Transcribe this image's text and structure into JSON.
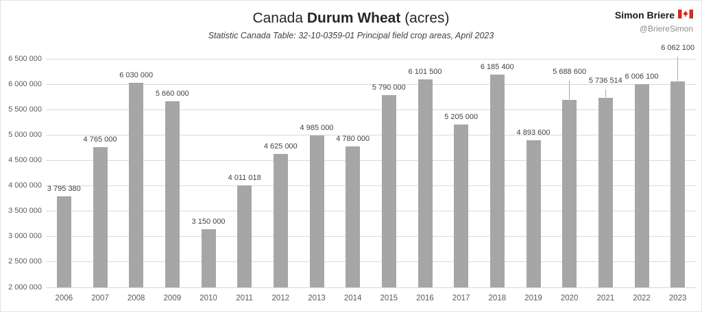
{
  "header": {
    "title_prefix": "Canada ",
    "title_bold": "Durum Wheat",
    "title_suffix": " (acres)",
    "subtitle": "Statistic Canada Table: 32-10-0359-01 Principal field crop areas, April 2023"
  },
  "author": {
    "name": "Simon Briere",
    "handle": "@BriereSimon",
    "flag_icon": "canada-flag"
  },
  "colors": {
    "bar": "#a6a6a6",
    "grid": "#d9d9d9",
    "axis_text": "#595959",
    "label_text": "#404040",
    "flag_red": "#d52b1e"
  },
  "chart_data": {
    "type": "bar",
    "title": "Canada Durum Wheat (acres)",
    "subtitle": "Statistic Canada Table: 32-10-0359-01 Principal field crop areas, April 2023",
    "categories": [
      "2006",
      "2007",
      "2008",
      "2009",
      "2010",
      "2011",
      "2012",
      "2013",
      "2014",
      "2015",
      "2016",
      "2017",
      "2018",
      "2019",
      "2020",
      "2021",
      "2022",
      "2023"
    ],
    "values": [
      3795380,
      4765000,
      6030000,
      5660000,
      3150000,
      4011018,
      4625000,
      4985000,
      4780000,
      5790000,
      6101500,
      5205000,
      6185400,
      4893600,
      5688600,
      5736514,
      6006100,
      6062100
    ],
    "value_labels": [
      "3 795 380",
      "4 765 000",
      "6 030 000",
      "5 660 000",
      "3 150 000",
      "4 011 018",
      "4 625 000",
      "4 985 000",
      "4 780 000",
      "5 790 000",
      "6 101 500",
      "5 205 000",
      "6 185 400",
      "4 893 600",
      "5 688 600",
      "5 736 514",
      "6 006 100",
      "6 062 100"
    ],
    "label_lifts": [
      0,
      0,
      0,
      0,
      0,
      0,
      0,
      0,
      0,
      0,
      0,
      0,
      0,
      0,
      30,
      14,
      0,
      38
    ],
    "xlabel": "",
    "ylabel": "",
    "ylim": [
      2000000,
      6500000
    ],
    "ytick_step": 500000,
    "ytick_labels": [
      "2 000 000",
      "2 500 000",
      "3 000 000",
      "3 500 000",
      "4 000 000",
      "4 500 000",
      "5 000 000",
      "5 500 000",
      "6 000 000",
      "6 500 000"
    ],
    "grid": true,
    "legend": "none"
  }
}
